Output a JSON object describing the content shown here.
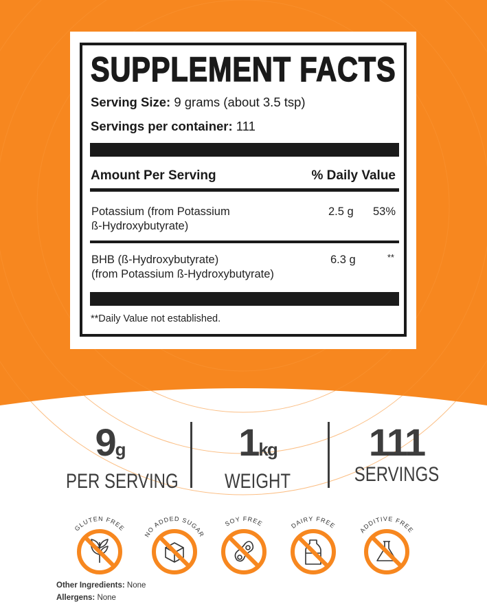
{
  "colors": {
    "orange": "#f7871f",
    "black": "#1a1a1a",
    "gray": "#3d3d3d"
  },
  "facts": {
    "title": "SUPPLEMENT FACTS",
    "serving_size_label": "Serving Size:",
    "serving_size_value": "9 grams (about 3.5 tsp)",
    "servings_label": "Servings per container:",
    "servings_value": "111",
    "amount_header": "Amount Per Serving",
    "dv_header": "% Daily Value",
    "rows": [
      {
        "name_line1": "Potassium (from Potassium",
        "name_line2": "ß-Hydroxybutyrate)",
        "amount": "2.5 g",
        "dv": "53%"
      },
      {
        "name_line1": "BHB (ß-Hydroxybutyrate)",
        "name_line2": "(from Potassium ß-Hydroxybutyrate)",
        "amount": "6.3 g",
        "dv": "**"
      }
    ],
    "footnote": "**Daily Value not established."
  },
  "stats": [
    {
      "number": "9",
      "unit": "g",
      "caption": "PER SERVING"
    },
    {
      "number": "1",
      "unit": "kg",
      "caption": "WEIGHT"
    },
    {
      "number": "111",
      "unit": "",
      "caption": "SERVINGS"
    }
  ],
  "badges": [
    {
      "label": "GLUTEN FREE",
      "icon": "wheat-icon"
    },
    {
      "label": "NO ADDED SUGAR",
      "icon": "sugar-cube-icon"
    },
    {
      "label": "SOY FREE",
      "icon": "soybean-icon"
    },
    {
      "label": "DAIRY FREE",
      "icon": "milk-bottle-icon"
    },
    {
      "label": "ADDITIVE FREE",
      "icon": "flask-icon"
    }
  ],
  "footer": {
    "other_label": "Other Ingredients:",
    "other_value": "None",
    "allergens_label": "Allergens:",
    "allergens_value": "None"
  }
}
